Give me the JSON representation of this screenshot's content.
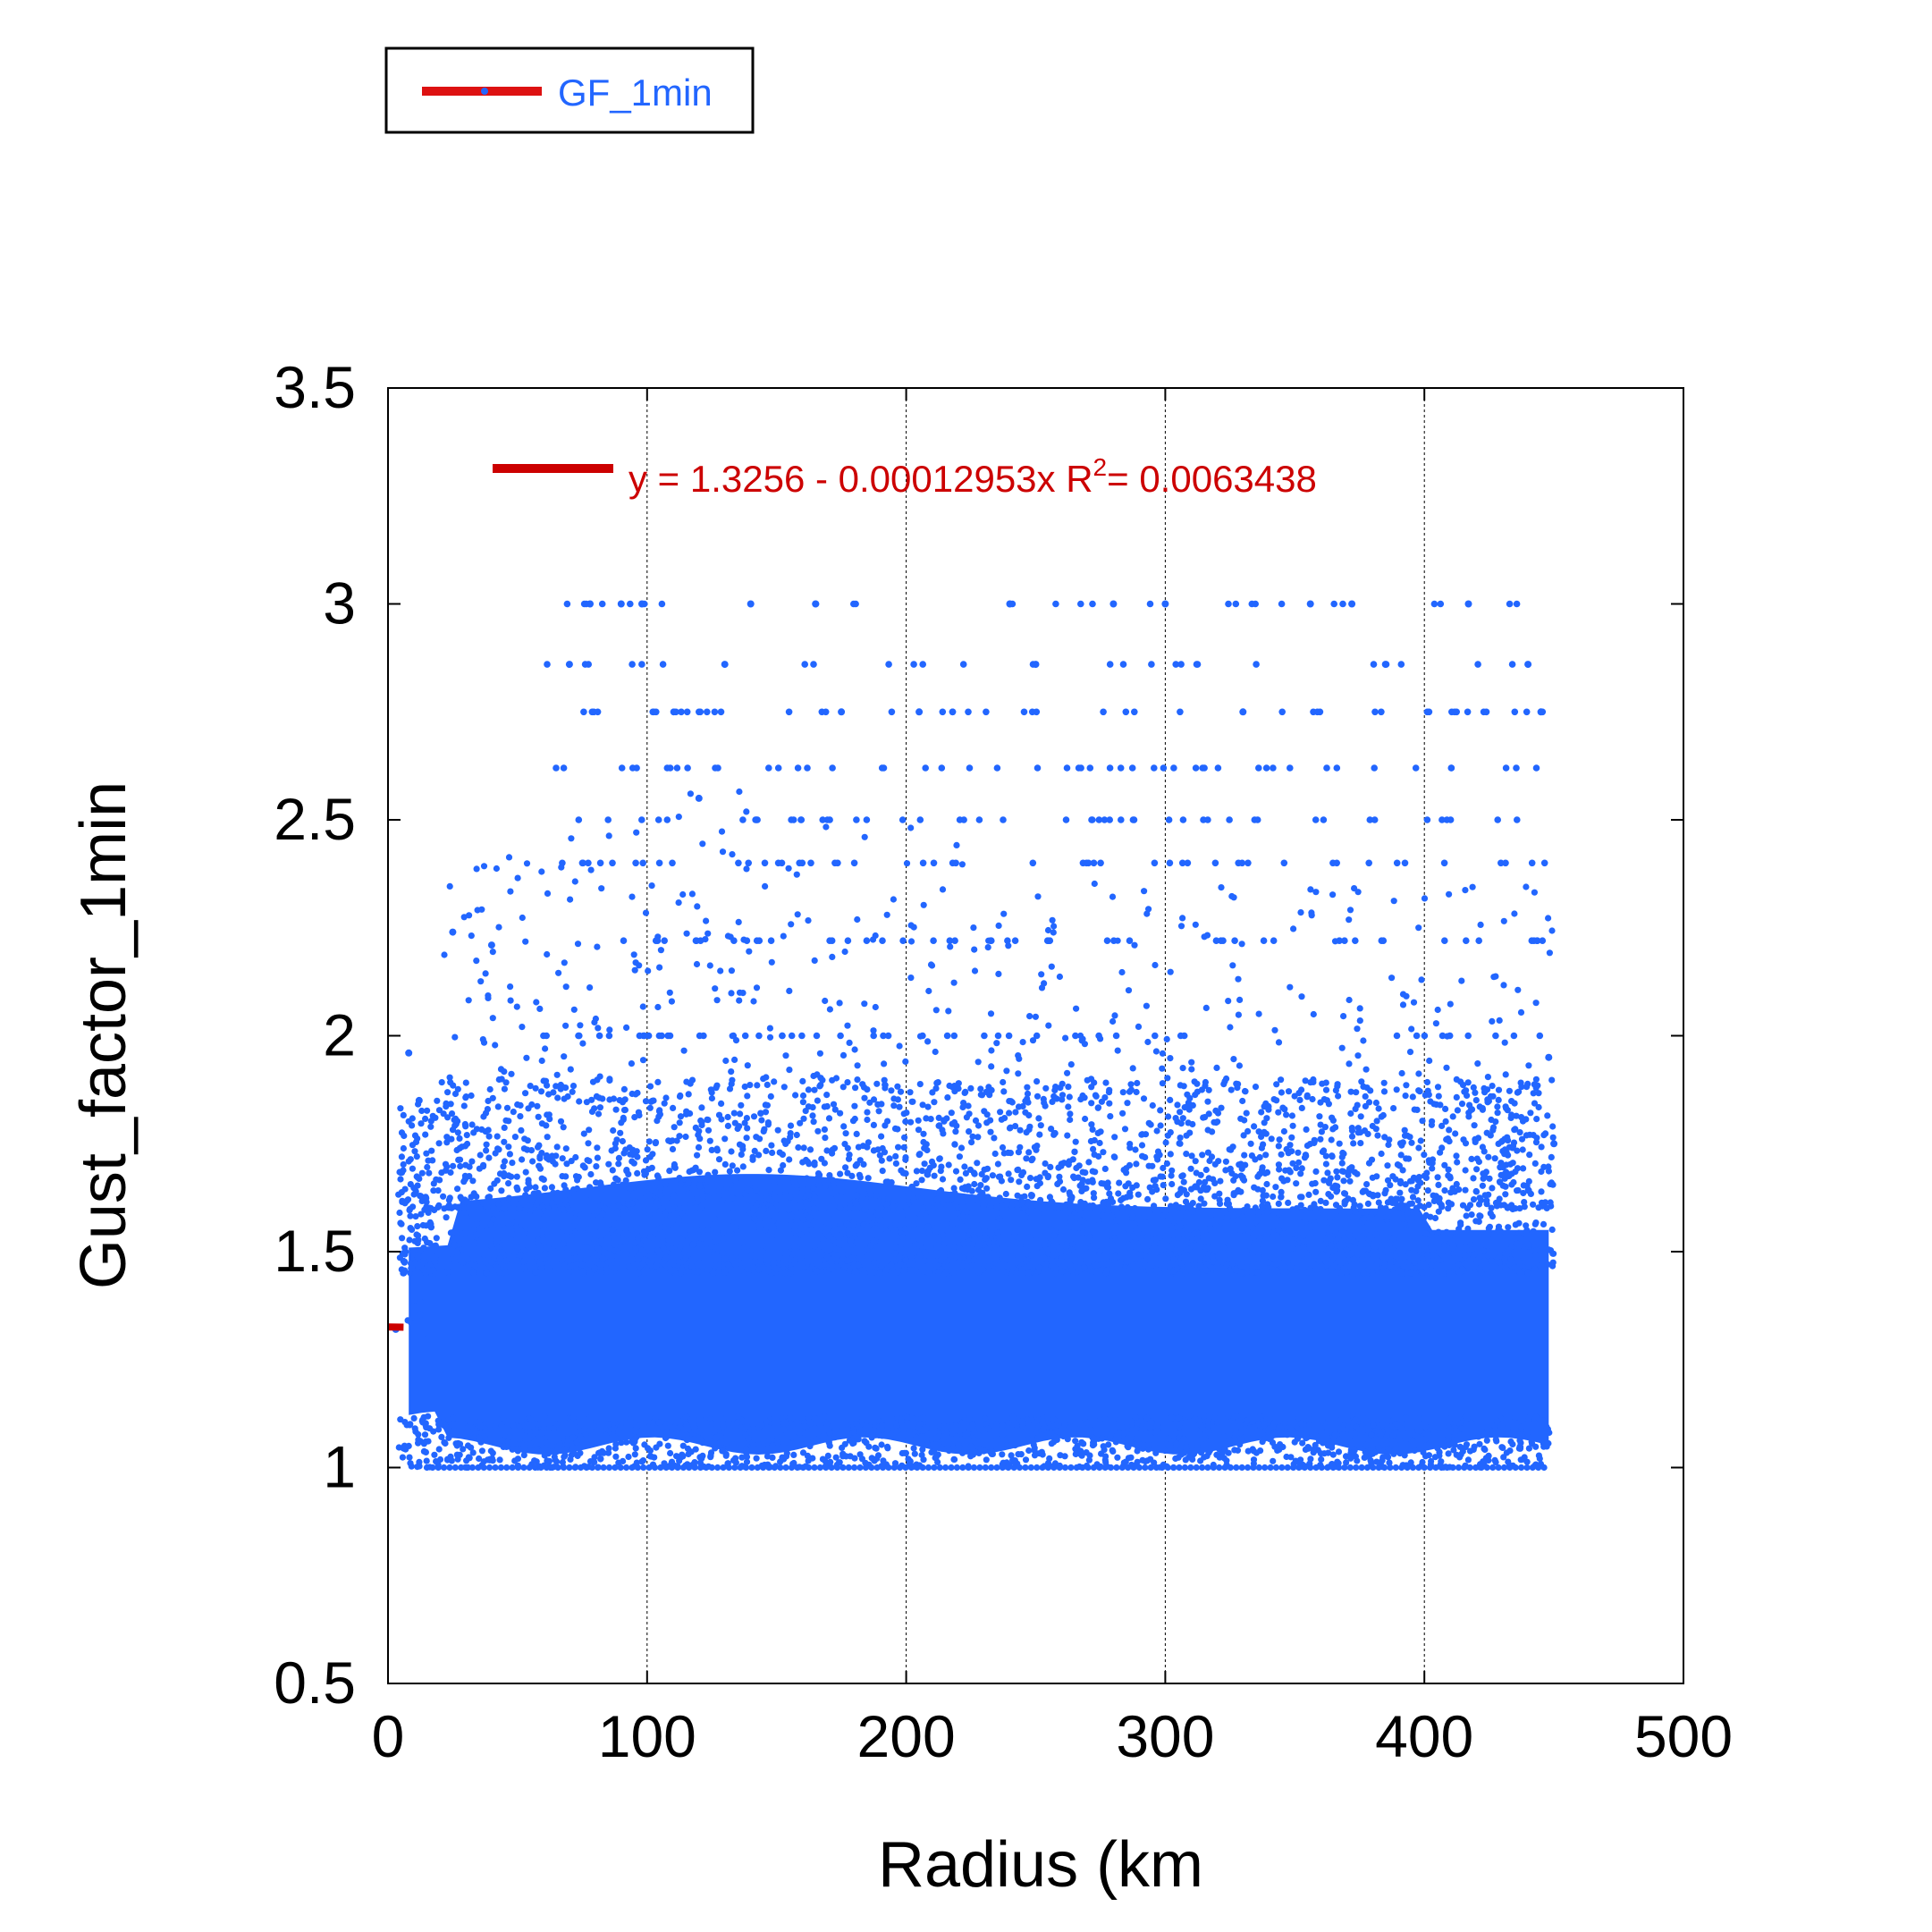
{
  "chart_data": {
    "type": "scatter",
    "xlabel": "Radius (km",
    "ylabel": "Gust_factor_1min",
    "xlim": [
      0,
      500
    ],
    "ylim": [
      0.5,
      3.5
    ],
    "x_ticks": [
      "0",
      "100",
      "200",
      "300",
      "400",
      "500"
    ],
    "y_ticks": [
      "0.5",
      "1",
      "1.5",
      "2",
      "2.5",
      "3",
      "3.5"
    ],
    "x_grid": true,
    "y_grid": false,
    "legend": {
      "position": "top-left",
      "entries": [
        "GF_1min"
      ]
    },
    "series": [
      {
        "name": "GF_1min",
        "color": "#2266ff",
        "x_range": [
          0,
          450
        ],
        "y_range": [
          1.0,
          3.0
        ],
        "dense_band": [
          1.05,
          1.6
        ],
        "points_sample": [
          [
            3,
            1.32
          ],
          [
            8,
            1.96
          ],
          [
            12,
            1.85
          ],
          [
            25,
            2.24
          ],
          [
            40,
            2.21
          ],
          [
            70,
            2.86
          ],
          [
            78,
            3.0
          ],
          [
            90,
            3.0
          ],
          [
            98,
            3.0
          ],
          [
            120,
            2.55
          ],
          [
            130,
            2.86
          ],
          [
            140,
            3.0
          ],
          [
            165,
            3.0
          ],
          [
            175,
            2.75
          ],
          [
            205,
            2.75
          ],
          [
            240,
            3.0
          ],
          [
            250,
            2.86
          ],
          [
            280,
            3.0
          ],
          [
            300,
            3.0
          ],
          [
            330,
            2.75
          ],
          [
            356,
            3.0
          ],
          [
            372,
            3.0
          ],
          [
            385,
            2.86
          ],
          [
            417,
            3.0
          ],
          [
            440,
            2.86
          ],
          [
            445,
            2.75
          ],
          [
            448,
            1.95
          ],
          [
            450,
            1.75
          ]
        ]
      }
    ],
    "fit": {
      "color": "#cc0000",
      "intercept": 1.3256,
      "slope": -0.00012953,
      "equation_prefix": "y = 1.3256 - 0.00012953x   R",
      "r2_sup": "2",
      "r2_value": "= 0.0063438"
    }
  }
}
